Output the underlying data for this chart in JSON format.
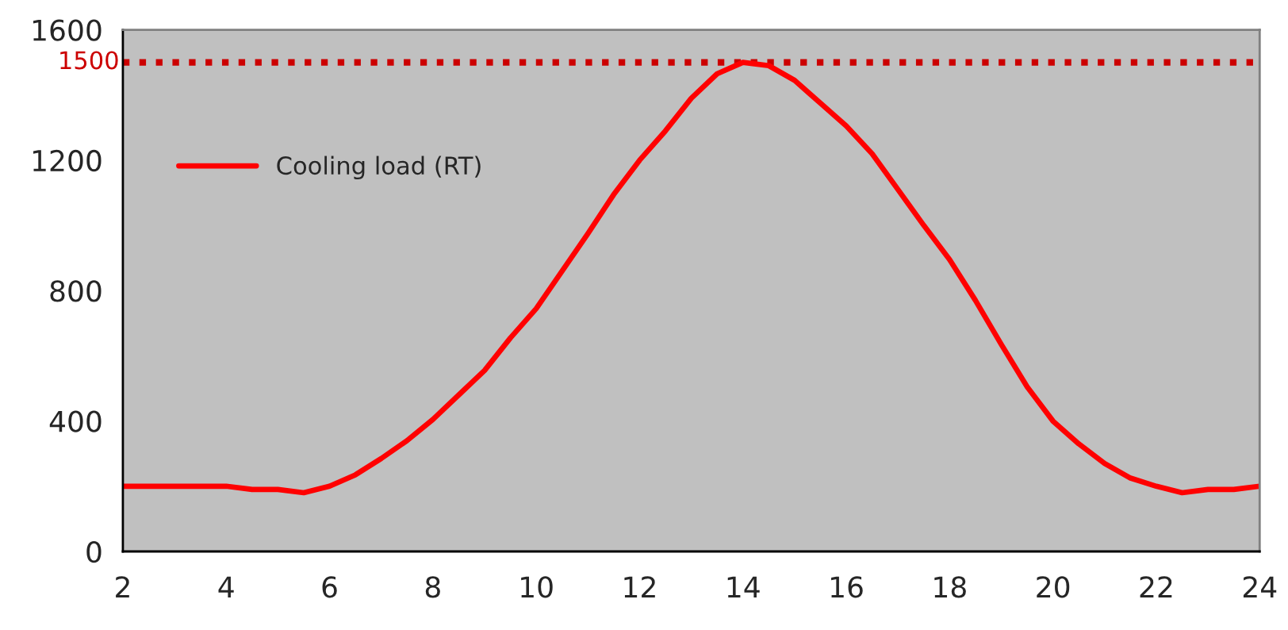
{
  "chart_data": {
    "type": "line",
    "x": [
      2,
      4,
      4.5,
      5,
      5.5,
      6,
      6.5,
      7,
      7.5,
      8,
      8.5,
      9,
      9.5,
      10,
      10.5,
      11,
      11.5,
      12,
      12.5,
      13,
      13.5,
      14,
      14.5,
      15,
      15.5,
      16,
      16.5,
      17,
      17.5,
      18,
      18.5,
      19,
      19.5,
      20,
      20.5,
      21,
      21.5,
      22,
      22.5,
      23,
      23.5,
      24
    ],
    "series": [
      {
        "name": "Cooling load (RT)",
        "color": "#ff0000",
        "values": [
          200,
          200,
          190,
          190,
          180,
          200,
          235,
          285,
          340,
          405,
          480,
          555,
          655,
          745,
          860,
          975,
          1095,
          1200,
          1290,
          1390,
          1465,
          1500,
          1490,
          1445,
          1375,
          1305,
          1220,
          1110,
          1000,
          895,
          770,
          635,
          505,
          400,
          330,
          270,
          225,
          200,
          180,
          190,
          190,
          200
        ]
      }
    ],
    "xlim": [
      2,
      24
    ],
    "xticks": [
      2,
      4,
      6,
      8,
      10,
      12,
      14,
      16,
      18,
      20,
      22,
      24
    ],
    "ylim": [
      0,
      1600
    ],
    "yticks": [
      0,
      400,
      800,
      1200,
      1600
    ],
    "ref_lines": [
      {
        "axis": "y",
        "value": 1500,
        "label": "1500",
        "color": "#cc0000",
        "line_style": "dotted"
      }
    ],
    "legend": "top left",
    "grid": false,
    "marker": "none",
    "line_style": "solid"
  }
}
